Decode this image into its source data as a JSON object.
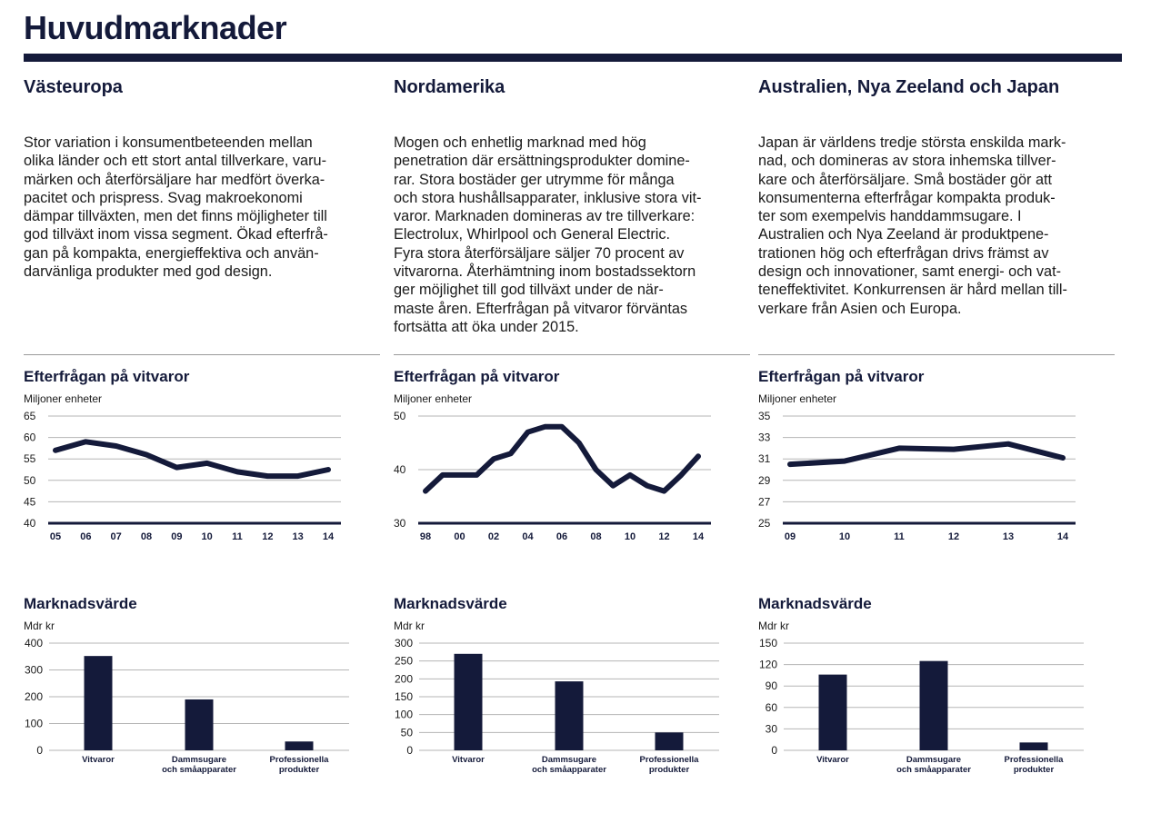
{
  "page": {
    "title": "Huvudmarknader"
  },
  "colors": {
    "navy": "#141a3a",
    "grid": "#b5b5b5",
    "rule": "#9a9a9a"
  },
  "columns": [
    {
      "name": "Västeuropa",
      "text_lines": [
        "Stor variation i konsumentbeteenden mellan",
        "olika länder och ett stort antal tillverkare, varu-",
        "märken och återförsäljare har medfört överka-",
        "pacitet och prispress. Svag makroekonomi",
        "dämpar tillväxten, men det finns möjligheter till",
        "god tillväxt inom vissa segment. Ökad efterfrå-",
        "gan på kompakta, energieffektiva och använ-",
        "darvänliga produkter med god design."
      ],
      "line_title": "Efterfrågan på vitvaror",
      "line_unit": "Miljoner enheter",
      "bar_title": "Marknadsvärde",
      "bar_unit": "Mdr kr"
    },
    {
      "name": "Nordamerika",
      "text_lines": [
        "Mogen och enhetlig marknad med hög",
        "penetration där ersättningsprodukter domine-",
        "rar. Stora bostäder ger utrymme för många",
        "och stora hushållsapparater, inklusive stora vit-",
        "varor. Marknaden domineras av tre tillverkare:",
        "Electrolux, Whirlpool och General Electric.",
        "Fyra stora återförsäljare säljer 70 procent av",
        "vitvarorna. Återhämtning inom bostadssektorn",
        "ger möjlighet till god tillväxt under de när-",
        "maste åren. Efterfrågan på vitvaror förväntas",
        "fortsätta att öka under 2015."
      ],
      "line_title": "Efterfrågan på vitvaror",
      "line_unit": "Miljoner enheter",
      "bar_title": "Marknadsvärde",
      "bar_unit": "Mdr kr"
    },
    {
      "name": "Australien, Nya Zeeland och Japan",
      "text_lines": [
        "Japan är världens tredje största enskilda mark-",
        "nad, och domineras av stora inhemska tillver-",
        "kare och återförsäljare. Små bostäder gör att",
        "konsumenterna efterfrågar kompakta produk-",
        "ter som exempelvis handdammsugare. I",
        "Australien och Nya Zeeland är produktpene-",
        "trationen hög och efterfrågan drivs främst av",
        "design och innovationer, samt energi- och vat-",
        "teneffektivitet. Konkurrensen är hård mellan till-",
        "verkare från Asien och Europa."
      ],
      "line_title": "Efterfrågan på vitvaror",
      "line_unit": "Miljoner enheter",
      "bar_title": "Marknadsvärde",
      "bar_unit": "Mdr kr"
    }
  ],
  "chart_data": [
    {
      "type": "line",
      "title": "Efterfrågan på vitvaror",
      "ylabel": "Miljoner enheter",
      "ylim": [
        40,
        65
      ],
      "yticks": [
        65,
        60,
        55,
        50,
        45,
        40
      ],
      "x_labels": [
        "05",
        "06",
        "07",
        "08",
        "09",
        "10",
        "11",
        "12",
        "13",
        "14"
      ],
      "x": [
        2005,
        2006,
        2007,
        2008,
        2009,
        2010,
        2011,
        2012,
        2013,
        2014
      ],
      "y": [
        57,
        59,
        58,
        56,
        53,
        54,
        52,
        51,
        51,
        52.5
      ],
      "grid": true
    },
    {
      "type": "line",
      "title": "Efterfrågan på vitvaror",
      "ylabel": "Miljoner enheter",
      "ylim": [
        30,
        50
      ],
      "yticks": [
        50,
        40,
        30
      ],
      "x_labels": [
        "98",
        "00",
        "02",
        "04",
        "06",
        "08",
        "10",
        "12",
        "14"
      ],
      "x": [
        1998,
        1999,
        2000,
        2001,
        2002,
        2003,
        2004,
        2005,
        2006,
        2007,
        2008,
        2009,
        2010,
        2011,
        2012,
        2013,
        2014
      ],
      "y": [
        36,
        39,
        39,
        39,
        42,
        43,
        47,
        48,
        48,
        45,
        40,
        37,
        39,
        37,
        36,
        39,
        42.5
      ],
      "grid": true
    },
    {
      "type": "line",
      "title": "Efterfrågan på vitvaror",
      "ylabel": "Miljoner enheter",
      "ylim": [
        25,
        35
      ],
      "yticks": [
        35,
        33,
        31,
        29,
        27,
        25
      ],
      "x_labels": [
        "09",
        "10",
        "11",
        "12",
        "13",
        "14"
      ],
      "x": [
        2009,
        2010,
        2011,
        2012,
        2013,
        2014
      ],
      "y": [
        30.5,
        30.8,
        32,
        31.9,
        32.4,
        31.1
      ],
      "grid": true
    },
    {
      "type": "bar",
      "title": "Marknadsvärde",
      "ylabel": "Mdr kr",
      "ylim": [
        0,
        400
      ],
      "yticks": [
        400,
        300,
        200,
        100,
        0
      ],
      "categories": [
        [
          "Vitvaror"
        ],
        [
          "Dammsugare",
          "och småapparater"
        ],
        [
          "Professionella",
          "produkter"
        ]
      ],
      "values": [
        352,
        190,
        33
      ],
      "grid": true
    },
    {
      "type": "bar",
      "title": "Marknadsvärde",
      "ylabel": "Mdr kr",
      "ylim": [
        0,
        300
      ],
      "yticks": [
        300,
        250,
        200,
        150,
        100,
        50,
        0
      ],
      "categories": [
        [
          "Vitvaror"
        ],
        [
          "Dammsugare",
          "och småapparater"
        ],
        [
          "Professionella",
          "produkter"
        ]
      ],
      "values": [
        270,
        193,
        50
      ],
      "grid": true
    },
    {
      "type": "bar",
      "title": "Marknadsvärde",
      "ylabel": "Mdr kr",
      "ylim": [
        0,
        150
      ],
      "yticks": [
        150,
        120,
        90,
        60,
        30,
        0
      ],
      "categories": [
        [
          "Vitvaror"
        ],
        [
          "Dammsugare",
          "och småapparater"
        ],
        [
          "Professionella",
          "produkter"
        ]
      ],
      "values": [
        106,
        125,
        11
      ],
      "grid": true
    }
  ]
}
